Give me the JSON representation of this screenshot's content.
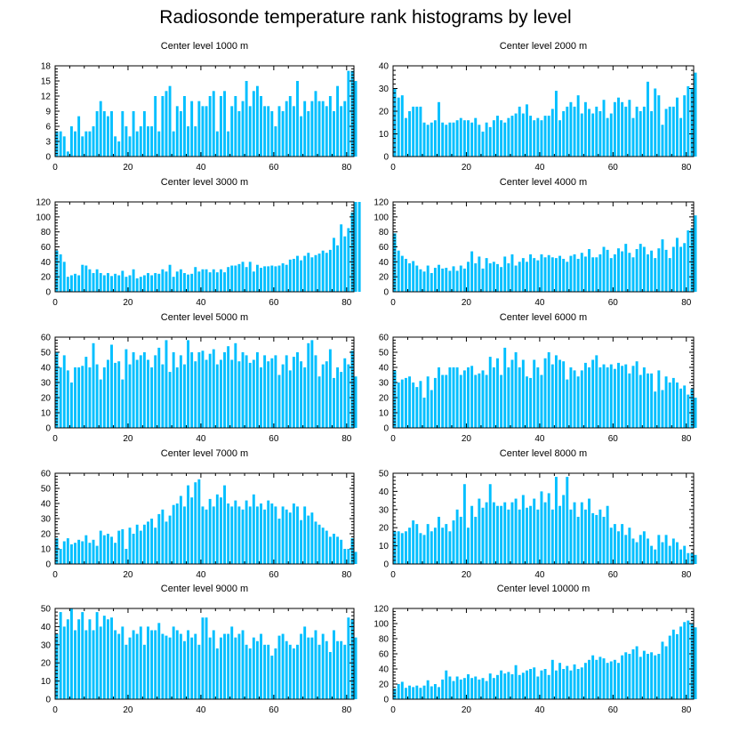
{
  "title": "Radiosonde temperature rank histograms by level",
  "colors": {
    "bar": "#00BFFF",
    "axis": "#000000"
  },
  "chart_data": [
    {
      "type": "bar",
      "title": "Center level 1000 m",
      "xlim": [
        0,
        82
      ],
      "ylim": [
        0,
        18
      ],
      "xticks": [
        0,
        20,
        40,
        60,
        80
      ],
      "yticks": [
        0,
        3,
        6,
        9,
        12,
        15,
        18
      ],
      "values": [
        5,
        5,
        4,
        1,
        6,
        5,
        8,
        4,
        5,
        5,
        6,
        9,
        11,
        9,
        8,
        9,
        4,
        3,
        9,
        6,
        4,
        9,
        5,
        6,
        9,
        6,
        6,
        12,
        5,
        12,
        13,
        14,
        5,
        10,
        9,
        12,
        6,
        11,
        6,
        11,
        10,
        10,
        12,
        13,
        5,
        12,
        13,
        5,
        10,
        12,
        9,
        11,
        15,
        10,
        13,
        14,
        12,
        10,
        10,
        9,
        6,
        10,
        9,
        11,
        12,
        10,
        15,
        8,
        11,
        9,
        11,
        13,
        11,
        11,
        10,
        12,
        9,
        14,
        10,
        11,
        17,
        17,
        15
      ]
    },
    {
      "type": "bar",
      "title": "Center level 2000 m",
      "xlim": [
        0,
        82
      ],
      "ylim": [
        0,
        40
      ],
      "xticks": [
        0,
        20,
        40,
        60,
        80
      ],
      "yticks": [
        0,
        10,
        20,
        30,
        40
      ],
      "values": [
        30,
        26,
        27,
        17,
        20,
        22,
        22,
        22,
        15,
        14,
        15,
        16,
        24,
        15,
        14,
        15,
        15,
        16,
        17,
        16,
        16,
        15,
        17,
        14,
        11,
        15,
        13,
        16,
        18,
        16,
        15,
        17,
        18,
        19,
        22,
        19,
        23,
        18,
        16,
        17,
        16,
        18,
        18,
        21,
        29,
        16,
        20,
        22,
        24,
        22,
        27,
        19,
        24,
        21,
        19,
        22,
        20,
        25,
        17,
        19,
        24,
        26,
        24,
        22,
        25,
        17,
        22,
        20,
        22,
        33,
        20,
        30,
        27,
        14,
        21,
        22,
        22,
        26,
        17,
        27,
        31,
        30,
        37
      ]
    },
    {
      "type": "bar",
      "title": "Center level 3000 m",
      "xlim": [
        0,
        82
      ],
      "ylim": [
        0,
        120
      ],
      "xticks": [
        0,
        20,
        40,
        60,
        80
      ],
      "yticks": [
        0,
        20,
        40,
        60,
        80,
        100,
        120
      ],
      "values": [
        55,
        50,
        40,
        20,
        22,
        24,
        22,
        36,
        35,
        30,
        25,
        30,
        25,
        22,
        25,
        21,
        24,
        22,
        28,
        20,
        22,
        30,
        18,
        20,
        22,
        25,
        22,
        25,
        24,
        30,
        27,
        36,
        20,
        27,
        30,
        25,
        23,
        24,
        33,
        27,
        30,
        30,
        26,
        30,
        26,
        30,
        26,
        33,
        35,
        35,
        37,
        40,
        33,
        40,
        27,
        36,
        32,
        34,
        34,
        35,
        34,
        35,
        38,
        36,
        43,
        44,
        48,
        42,
        48,
        52,
        46,
        49,
        51,
        55,
        52,
        56,
        72,
        62,
        90,
        74,
        85,
        106,
        120,
        120
      ]
    },
    {
      "type": "bar",
      "title": "Center level 4000 m",
      "xlim": [
        0,
        82
      ],
      "ylim": [
        0,
        120
      ],
      "xticks": [
        0,
        20,
        40,
        60,
        80
      ],
      "yticks": [
        0,
        20,
        40,
        60,
        80,
        100,
        120
      ],
      "values": [
        78,
        55,
        48,
        44,
        38,
        41,
        35,
        30,
        27,
        35,
        25,
        32,
        36,
        31,
        32,
        28,
        34,
        28,
        35,
        31,
        40,
        54,
        38,
        47,
        31,
        45,
        38,
        40,
        37,
        33,
        47,
        38,
        50,
        35,
        40,
        45,
        40,
        50,
        45,
        42,
        50,
        46,
        49,
        46,
        45,
        48,
        44,
        40,
        48,
        50,
        44,
        52,
        47,
        57,
        46,
        46,
        50,
        60,
        56,
        45,
        50,
        58,
        54,
        64,
        52,
        46,
        57,
        64,
        60,
        50,
        55,
        45,
        58,
        70,
        56,
        45,
        60,
        72,
        60,
        65,
        82,
        85,
        102
      ]
    },
    {
      "type": "bar",
      "title": "Center level 5000 m",
      "xlim": [
        0,
        82
      ],
      "ylim": [
        0,
        60
      ],
      "xticks": [
        0,
        20,
        40,
        60,
        80
      ],
      "yticks": [
        0,
        10,
        20,
        30,
        40,
        50,
        60
      ],
      "values": [
        50,
        40,
        48,
        38,
        30,
        40,
        40,
        41,
        47,
        40,
        56,
        42,
        32,
        40,
        45,
        55,
        43,
        44,
        32,
        52,
        42,
        50,
        45,
        48,
        50,
        45,
        40,
        48,
        53,
        42,
        58,
        37,
        50,
        40,
        48,
        42,
        58,
        50,
        44,
        50,
        51,
        45,
        49,
        52,
        42,
        45,
        50,
        54,
        45,
        56,
        44,
        50,
        48,
        43,
        45,
        50,
        40,
        48,
        44,
        46,
        48,
        35,
        42,
        48,
        38,
        47,
        50,
        44,
        40,
        56,
        58,
        48,
        34,
        42,
        44,
        52,
        33,
        40,
        37,
        46,
        42,
        51,
        34
      ]
    },
    {
      "type": "bar",
      "title": "Center level 6000 m",
      "xlim": [
        0,
        82
      ],
      "ylim": [
        0,
        60
      ],
      "xticks": [
        0,
        20,
        40,
        60,
        80
      ],
      "yticks": [
        0,
        10,
        20,
        30,
        40,
        50,
        60
      ],
      "values": [
        38,
        30,
        32,
        33,
        34,
        30,
        27,
        31,
        20,
        34,
        25,
        33,
        40,
        35,
        35,
        40,
        40,
        40,
        35,
        38,
        40,
        41,
        35,
        36,
        38,
        35,
        47,
        40,
        46,
        35,
        53,
        40,
        45,
        50,
        40,
        45,
        34,
        33,
        45,
        40,
        35,
        46,
        50,
        42,
        48,
        45,
        44,
        32,
        40,
        38,
        34,
        38,
        43,
        40,
        45,
        48,
        40,
        42,
        40,
        42,
        39,
        43,
        41,
        42,
        36,
        41,
        44,
        35,
        40,
        36,
        36,
        24,
        38,
        25,
        34,
        30,
        33,
        30,
        26,
        28,
        22,
        26,
        20
      ]
    },
    {
      "type": "bar",
      "title": "Center level 7000 m",
      "xlim": [
        0,
        82
      ],
      "ylim": [
        0,
        60
      ],
      "xticks": [
        0,
        20,
        40,
        60,
        80
      ],
      "yticks": [
        0,
        10,
        20,
        30,
        40,
        50,
        60
      ],
      "values": [
        17,
        10,
        15,
        17,
        13,
        14,
        16,
        15,
        19,
        14,
        16,
        12,
        22,
        19,
        20,
        18,
        14,
        22,
        23,
        10,
        24,
        20,
        26,
        22,
        26,
        28,
        30,
        24,
        33,
        36,
        28,
        32,
        39,
        40,
        45,
        38,
        52,
        44,
        54,
        56,
        38,
        36,
        43,
        38,
        46,
        44,
        52,
        40,
        38,
        42,
        38,
        36,
        42,
        38,
        46,
        38,
        40,
        36,
        42,
        40,
        38,
        30,
        38,
        36,
        34,
        40,
        38,
        29,
        38,
        32,
        34,
        28,
        26,
        24,
        22,
        18,
        20,
        18,
        16,
        10,
        10,
        17,
        8
      ]
    },
    {
      "type": "bar",
      "title": "Center level 8000 m",
      "xlim": [
        0,
        82
      ],
      "ylim": [
        0,
        50
      ],
      "xticks": [
        0,
        20,
        40,
        60,
        80
      ],
      "yticks": [
        0,
        10,
        20,
        30,
        40,
        50
      ],
      "values": [
        18,
        18,
        17,
        18,
        20,
        24,
        22,
        17,
        16,
        22,
        18,
        20,
        26,
        20,
        22,
        18,
        24,
        30,
        26,
        44,
        20,
        32,
        26,
        36,
        31,
        34,
        44,
        34,
        32,
        32,
        34,
        30,
        34,
        36,
        30,
        38,
        31,
        32,
        36,
        30,
        40,
        34,
        39,
        30,
        48,
        32,
        38,
        48,
        30,
        34,
        26,
        34,
        30,
        36,
        28,
        27,
        30,
        26,
        32,
        20,
        22,
        18,
        22,
        16,
        20,
        14,
        12,
        16,
        18,
        14,
        10,
        8,
        16,
        12,
        16,
        10,
        14,
        12,
        8,
        10,
        6,
        6,
        5
      ]
    },
    {
      "type": "bar",
      "title": "Center level 9000 m",
      "xlim": [
        0,
        82
      ],
      "ylim": [
        0,
        50
      ],
      "xticks": [
        0,
        20,
        40,
        60,
        80
      ],
      "yticks": [
        0,
        10,
        20,
        30,
        40,
        50
      ],
      "values": [
        36,
        48,
        40,
        44,
        50,
        38,
        44,
        48,
        38,
        44,
        38,
        48,
        40,
        46,
        44,
        45,
        38,
        36,
        40,
        30,
        34,
        38,
        36,
        40,
        30,
        40,
        38,
        38,
        42,
        36,
        35,
        34,
        40,
        38,
        36,
        32,
        38,
        34,
        36,
        30,
        45,
        45,
        34,
        38,
        28,
        34,
        36,
        36,
        40,
        34,
        36,
        38,
        30,
        28,
        34,
        32,
        36,
        30,
        30,
        24,
        28,
        35,
        36,
        32,
        30,
        28,
        30,
        36,
        40,
        34,
        34,
        38,
        30,
        36,
        32,
        26,
        38,
        32,
        32,
        30,
        45,
        44,
        34
      ]
    },
    {
      "type": "bar",
      "title": "Center level 10000 m",
      "xlim": [
        0,
        82
      ],
      "ylim": [
        0,
        120
      ],
      "xticks": [
        0,
        20,
        40,
        60,
        80
      ],
      "yticks": [
        0,
        20,
        40,
        60,
        80,
        100,
        120
      ],
      "values": [
        14,
        20,
        23,
        15,
        18,
        16,
        18,
        15,
        18,
        25,
        17,
        20,
        16,
        26,
        38,
        30,
        24,
        30,
        26,
        28,
        33,
        28,
        30,
        26,
        28,
        24,
        34,
        28,
        32,
        38,
        34,
        36,
        33,
        45,
        32,
        35,
        38,
        40,
        42,
        30,
        38,
        40,
        32,
        52,
        38,
        48,
        40,
        44,
        38,
        46,
        40,
        42,
        48,
        52,
        58,
        52,
        56,
        54,
        48,
        50,
        52,
        48,
        58,
        62,
        60,
        66,
        70,
        56,
        64,
        60,
        62,
        58,
        60,
        76,
        70,
        84,
        92,
        86,
        96,
        102,
        104,
        100,
        95
      ]
    }
  ]
}
